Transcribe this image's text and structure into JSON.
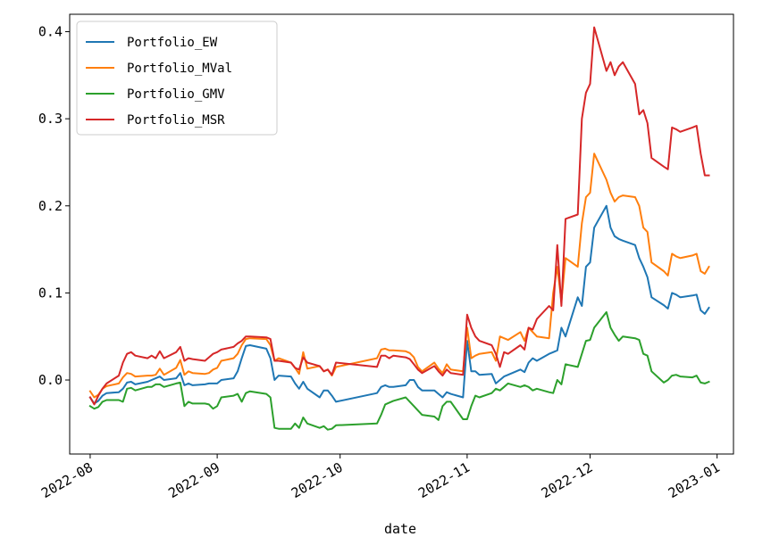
{
  "chart_data": {
    "type": "line",
    "xlabel": "date",
    "ylabel": "",
    "xlim": [
      "2022-07-27",
      "2023-01-05"
    ],
    "ylim": [
      -0.085,
      0.42
    ],
    "x_ticks": [
      "2022-08-01",
      "2022-09-01",
      "2022-10-01",
      "2022-11-01",
      "2022-12-01",
      "2023-01-01"
    ],
    "x_tick_labels": [
      "2022-08",
      "2022-09",
      "2022-10",
      "2022-11",
      "2022-12",
      "2023-01"
    ],
    "y_ticks": [
      0.0,
      0.1,
      0.2,
      0.3,
      0.4
    ],
    "y_tick_labels": [
      "0.0",
      "0.1",
      "0.2",
      "0.3",
      "0.4"
    ],
    "grid": false,
    "legend_position": "top-left",
    "x": [
      "2022-08-01",
      "2022-08-02",
      "2022-08-03",
      "2022-08-04",
      "2022-08-05",
      "2022-08-08",
      "2022-08-09",
      "2022-08-10",
      "2022-08-11",
      "2022-08-12",
      "2022-08-15",
      "2022-08-16",
      "2022-08-17",
      "2022-08-18",
      "2022-08-19",
      "2022-08-22",
      "2022-08-23",
      "2022-08-24",
      "2022-08-25",
      "2022-08-26",
      "2022-08-29",
      "2022-08-30",
      "2022-08-31",
      "2022-09-01",
      "2022-09-02",
      "2022-09-05",
      "2022-09-06",
      "2022-09-07",
      "2022-09-08",
      "2022-09-09",
      "2022-09-13",
      "2022-09-14",
      "2022-09-15",
      "2022-09-16",
      "2022-09-19",
      "2022-09-20",
      "2022-09-21",
      "2022-09-22",
      "2022-09-23",
      "2022-09-26",
      "2022-09-27",
      "2022-09-28",
      "2022-09-29",
      "2022-09-30",
      "2022-10-10",
      "2022-10-11",
      "2022-10-12",
      "2022-10-13",
      "2022-10-14",
      "2022-10-17",
      "2022-10-18",
      "2022-10-19",
      "2022-10-20",
      "2022-10-21",
      "2022-10-24",
      "2022-10-25",
      "2022-10-26",
      "2022-10-27",
      "2022-10-28",
      "2022-10-31",
      "2022-11-01",
      "2022-11-02",
      "2022-11-03",
      "2022-11-04",
      "2022-11-07",
      "2022-11-08",
      "2022-11-09",
      "2022-11-10",
      "2022-11-11",
      "2022-11-14",
      "2022-11-15",
      "2022-11-16",
      "2022-11-17",
      "2022-11-18",
      "2022-11-21",
      "2022-11-22",
      "2022-11-23",
      "2022-11-24",
      "2022-11-25",
      "2022-11-28",
      "2022-11-29",
      "2022-11-30",
      "2022-12-01",
      "2022-12-02",
      "2022-12-05",
      "2022-12-06",
      "2022-12-07",
      "2022-12-08",
      "2022-12-09",
      "2022-12-12",
      "2022-12-13",
      "2022-12-14",
      "2022-12-15",
      "2022-12-16",
      "2022-12-19",
      "2022-12-20",
      "2022-12-21",
      "2022-12-22",
      "2022-12-23",
      "2022-12-26",
      "2022-12-27",
      "2022-12-28",
      "2022-12-29",
      "2022-12-30"
    ],
    "series": [
      {
        "name": "Portfolio_EW",
        "color": "#1f77b4",
        "values": [
          -0.02,
          -0.027,
          -0.024,
          -0.018,
          -0.015,
          -0.014,
          -0.01,
          -0.003,
          -0.002,
          -0.005,
          -0.002,
          0.0,
          0.002,
          0.004,
          0.0,
          0.002,
          0.008,
          -0.006,
          -0.004,
          -0.006,
          -0.005,
          -0.004,
          -0.004,
          -0.004,
          0.0,
          0.002,
          0.01,
          0.025,
          0.039,
          0.04,
          0.036,
          0.025,
          0.0,
          0.005,
          0.004,
          -0.004,
          -0.01,
          -0.002,
          -0.01,
          -0.02,
          -0.012,
          -0.012,
          -0.018,
          -0.025,
          -0.015,
          -0.008,
          -0.006,
          -0.008,
          -0.008,
          -0.006,
          0.0,
          0.0,
          -0.008,
          -0.012,
          -0.012,
          -0.016,
          -0.02,
          -0.014,
          -0.016,
          -0.02,
          0.045,
          0.01,
          0.01,
          0.006,
          0.007,
          -0.004,
          0.0,
          0.004,
          0.006,
          0.012,
          0.009,
          0.02,
          0.025,
          0.022,
          0.03,
          0.032,
          0.034,
          0.06,
          0.05,
          0.095,
          0.085,
          0.13,
          0.135,
          0.175,
          0.2,
          0.175,
          0.165,
          0.162,
          0.16,
          0.155,
          0.14,
          0.13,
          0.118,
          0.095,
          0.086,
          0.082,
          0.1,
          0.098,
          0.095,
          0.097,
          0.098,
          0.08,
          0.076,
          0.083
        ]
      },
      {
        "name": "Portfolio_MVal",
        "color": "#ff7f0e",
        "values": [
          -0.013,
          -0.02,
          -0.017,
          -0.01,
          -0.007,
          -0.004,
          0.003,
          0.008,
          0.007,
          0.004,
          0.005,
          0.005,
          0.006,
          0.013,
          0.006,
          0.014,
          0.023,
          0.006,
          0.01,
          0.008,
          0.007,
          0.008,
          0.012,
          0.014,
          0.022,
          0.025,
          0.03,
          0.04,
          0.047,
          0.048,
          0.047,
          0.04,
          0.022,
          0.025,
          0.02,
          0.014,
          0.007,
          0.032,
          0.013,
          0.016,
          0.01,
          0.012,
          0.005,
          0.015,
          0.025,
          0.035,
          0.036,
          0.034,
          0.034,
          0.033,
          0.031,
          0.026,
          0.015,
          0.01,
          0.02,
          0.013,
          0.008,
          0.018,
          0.012,
          0.01,
          0.06,
          0.025,
          0.028,
          0.03,
          0.032,
          0.022,
          0.05,
          0.048,
          0.046,
          0.055,
          0.045,
          0.06,
          0.055,
          0.05,
          0.048,
          0.1,
          0.13,
          0.09,
          0.14,
          0.13,
          0.18,
          0.21,
          0.215,
          0.26,
          0.23,
          0.215,
          0.205,
          0.21,
          0.212,
          0.21,
          0.2,
          0.175,
          0.17,
          0.135,
          0.125,
          0.12,
          0.145,
          0.142,
          0.14,
          0.143,
          0.145,
          0.125,
          0.122,
          0.13
        ]
      },
      {
        "name": "Portfolio_GMV",
        "color": "#2ca02c",
        "values": [
          -0.03,
          -0.033,
          -0.031,
          -0.025,
          -0.023,
          -0.023,
          -0.025,
          -0.01,
          -0.009,
          -0.012,
          -0.008,
          -0.008,
          -0.005,
          -0.005,
          -0.008,
          -0.004,
          -0.003,
          -0.03,
          -0.025,
          -0.027,
          -0.027,
          -0.028,
          -0.033,
          -0.03,
          -0.02,
          -0.018,
          -0.016,
          -0.025,
          -0.015,
          -0.013,
          -0.016,
          -0.02,
          -0.055,
          -0.056,
          -0.056,
          -0.05,
          -0.055,
          -0.043,
          -0.05,
          -0.055,
          -0.053,
          -0.057,
          -0.056,
          -0.052,
          -0.05,
          -0.04,
          -0.028,
          -0.026,
          -0.024,
          -0.02,
          -0.025,
          -0.03,
          -0.035,
          -0.04,
          -0.042,
          -0.046,
          -0.03,
          -0.025,
          -0.025,
          -0.045,
          -0.045,
          -0.03,
          -0.018,
          -0.02,
          -0.015,
          -0.01,
          -0.012,
          -0.008,
          -0.004,
          -0.008,
          -0.006,
          -0.008,
          -0.012,
          -0.01,
          -0.014,
          -0.015,
          0.0,
          -0.005,
          0.018,
          0.015,
          0.03,
          0.045,
          0.046,
          0.06,
          0.078,
          0.06,
          0.052,
          0.045,
          0.05,
          0.048,
          0.046,
          0.03,
          0.028,
          0.01,
          -0.003,
          0.0,
          0.005,
          0.006,
          0.004,
          0.003,
          0.005,
          -0.003,
          -0.004,
          -0.002
        ]
      },
      {
        "name": "Portfolio_MSR",
        "color": "#d62728",
        "values": [
          -0.02,
          -0.028,
          -0.018,
          -0.01,
          -0.004,
          0.005,
          0.02,
          0.03,
          0.032,
          0.028,
          0.025,
          0.028,
          0.025,
          0.033,
          0.025,
          0.032,
          0.038,
          0.022,
          0.025,
          0.024,
          0.022,
          0.026,
          0.03,
          0.032,
          0.035,
          0.038,
          0.042,
          0.045,
          0.05,
          0.05,
          0.049,
          0.047,
          0.022,
          0.022,
          0.02,
          0.014,
          0.012,
          0.026,
          0.02,
          0.016,
          0.01,
          0.012,
          0.006,
          0.02,
          0.015,
          0.028,
          0.028,
          0.025,
          0.028,
          0.026,
          0.024,
          0.018,
          0.012,
          0.008,
          0.016,
          0.01,
          0.005,
          0.012,
          0.008,
          0.006,
          0.075,
          0.06,
          0.05,
          0.045,
          0.04,
          0.03,
          0.015,
          0.032,
          0.03,
          0.04,
          0.035,
          0.06,
          0.058,
          0.07,
          0.085,
          0.08,
          0.155,
          0.085,
          0.185,
          0.19,
          0.3,
          0.33,
          0.34,
          0.405,
          0.355,
          0.365,
          0.35,
          0.36,
          0.365,
          0.34,
          0.305,
          0.31,
          0.295,
          0.255,
          0.245,
          0.242,
          0.29,
          0.288,
          0.285,
          0.29,
          0.292,
          0.26,
          0.235,
          0.235
        ]
      }
    ]
  }
}
